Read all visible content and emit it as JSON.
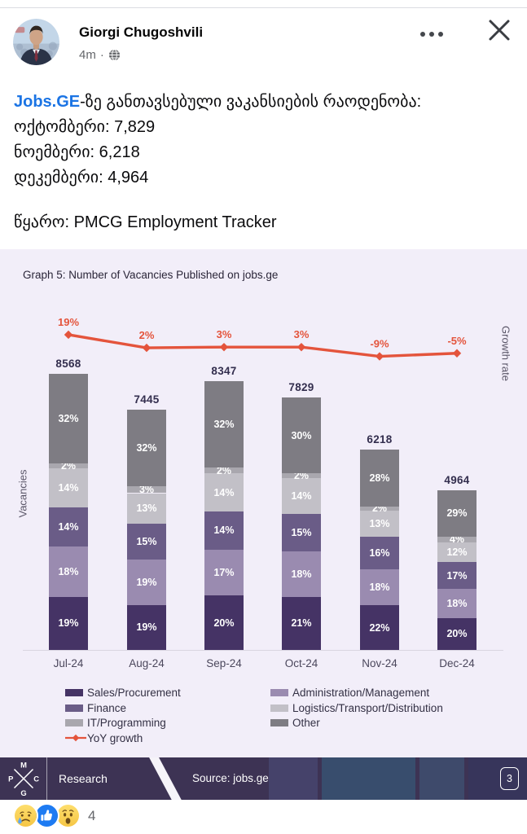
{
  "header": {
    "name": "Giorgi Chugoshvili",
    "time": "4m",
    "separator": "·"
  },
  "post": {
    "link_text": "Jobs.GE",
    "intro_rest": "-ზე განთავსებული ვაკანსიების რაოდენობა:",
    "stat_lines": [
      "ოქტომბერი: 7,829",
      "ნოემბერი: 6,218",
      "დეკემბერი: 4,964"
    ],
    "source_line": "წყარო: PMCG Employment Tracker"
  },
  "chart_data": {
    "type": "bar",
    "subtype": "stacked-percent-with-line",
    "title": "Graph 5: Number of Vacancies Published on jobs.ge",
    "categories": [
      "Jul-24",
      "Aug-24",
      "Sep-24",
      "Oct-24",
      "Nov-24",
      "Dec-24"
    ],
    "totals": [
      8568,
      7445,
      8347,
      7829,
      6218,
      4964
    ],
    "series": [
      {
        "name": "Sales/Procurement",
        "color": "#453365",
        "values": [
          19,
          19,
          20,
          21,
          22,
          20
        ]
      },
      {
        "name": "Administration/Management",
        "color": "#9a8bb0",
        "values": [
          18,
          19,
          17,
          18,
          18,
          18
        ]
      },
      {
        "name": "Finance",
        "color": "#6a5c87",
        "values": [
          14,
          15,
          14,
          15,
          16,
          17
        ]
      },
      {
        "name": "Logistics/Transport/Distribution",
        "color": "#c2c0c7",
        "values": [
          14,
          13,
          14,
          14,
          13,
          12
        ]
      },
      {
        "name": "IT/Programming",
        "color": "#a9a7ae",
        "values": [
          2,
          3,
          2,
          2,
          2,
          4
        ]
      },
      {
        "name": "Other",
        "color": "#7e7c83",
        "values": [
          32,
          32,
          32,
          30,
          28,
          29
        ]
      }
    ],
    "value_suffix": "%",
    "line_series": {
      "name": "YoY growth",
      "color": "#e4543c",
      "values": [
        19,
        2,
        3,
        3,
        -9,
        -5
      ],
      "labels": [
        "19%",
        "2%",
        "3%",
        "3%",
        "-9%",
        "-5%"
      ]
    },
    "ylabel": "Vacancies",
    "y2label": "Growth rate",
    "legend_position": "bottom",
    "background": "#f2eef9"
  },
  "footer": {
    "brand_letters": [
      "M",
      "P",
      "C",
      "G"
    ],
    "section_label": "Research",
    "source": "Source: jobs.ge",
    "page": "3"
  },
  "reactions": {
    "icons": [
      "sad",
      "like",
      "wow"
    ],
    "count": "4"
  }
}
